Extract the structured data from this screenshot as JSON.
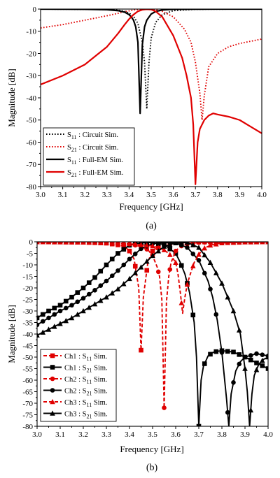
{
  "panels": [
    {
      "id": "a",
      "caption": "(a)",
      "chart_data": {
        "type": "line",
        "xlabel": "Frequency [GHz]",
        "ylabel": "Magnitude [dB]",
        "xlim": [
          3.0,
          4.0
        ],
        "ylim": [
          -80,
          0
        ],
        "xticks": [
          "3.0",
          "3.1",
          "3.2",
          "3.3",
          "3.4",
          "3.5",
          "3.6",
          "3.7",
          "3.8",
          "3.9",
          "4.0"
        ],
        "yticks": [
          "0",
          "-10",
          "-20",
          "-30",
          "-40",
          "-50",
          "-60",
          "-70",
          "-80"
        ],
        "grid": false,
        "legend_position": "bottom-left",
        "series": [
          {
            "label_main": "S",
            "label_sub": "11",
            "label_rest": " : Circuit Sim.",
            "color": "#000000",
            "style": "dotted",
            "x": [
              3.0,
              3.1,
              3.2,
              3.3,
              3.35,
              3.38,
              3.4,
              3.42,
              3.44,
              3.46,
              3.47,
              3.48,
              3.49,
              3.5,
              3.52,
              3.55,
              3.6,
              3.7,
              3.8,
              4.0
            ],
            "y": [
              -0.02,
              -0.05,
              -0.1,
              -0.25,
              -0.5,
              -1.0,
              -1.8,
              -3.2,
              -6.5,
              -15,
              -24,
              -45,
              -24,
              -13,
              -6,
              -2.5,
              -0.7,
              -0.1,
              -0.04,
              -0.01
            ]
          },
          {
            "label_main": "S",
            "label_sub": "21",
            "label_rest": " : Circuit Sim.",
            "color": "#e00000",
            "style": "dotted",
            "x": [
              3.0,
              3.1,
              3.2,
              3.3,
              3.35,
              3.38,
              3.4,
              3.42,
              3.44,
              3.46,
              3.48,
              3.5,
              3.52,
              3.55,
              3.6,
              3.65,
              3.68,
              3.7,
              3.72,
              3.73,
              3.74,
              3.76,
              3.8,
              3.85,
              3.9,
              4.0
            ],
            "y": [
              -8.5,
              -7,
              -5,
              -3,
              -1.9,
              -1.2,
              -0.8,
              -0.4,
              -0.15,
              -0.05,
              -0.05,
              -0.1,
              -0.3,
              -1.0,
              -3.5,
              -9,
              -15,
              -24,
              -38,
              -50,
              -39,
              -26,
              -20,
              -17,
              -15.5,
              -13.5
            ]
          },
          {
            "label_main": "S",
            "label_sub": "11",
            "label_rest": " : Full-EM Sim.",
            "color": "#000000",
            "style": "solid",
            "x": [
              3.0,
              3.1,
              3.2,
              3.3,
              3.35,
              3.38,
              3.4,
              3.41,
              3.42,
              3.43,
              3.44,
              3.45,
              3.46,
              3.47,
              3.48,
              3.5,
              3.52,
              3.55,
              3.6,
              3.7,
              3.8,
              4.0
            ],
            "y": [
              -0.02,
              -0.05,
              -0.1,
              -0.3,
              -0.7,
              -1.4,
              -2.5,
              -3.5,
              -5,
              -8,
              -15,
              -47,
              -16,
              -8,
              -5,
              -2.2,
              -1.1,
              -0.4,
              -0.1,
              -0.03,
              -0.02,
              -0.01
            ]
          },
          {
            "label_main": "S",
            "label_sub": "21",
            "label_rest": " : Full-EM Sim.",
            "color": "#e00000",
            "style": "solid",
            "x": [
              3.0,
              3.1,
              3.2,
              3.3,
              3.35,
              3.38,
              3.4,
              3.42,
              3.44,
              3.46,
              3.48,
              3.5,
              3.52,
              3.55,
              3.6,
              3.64,
              3.66,
              3.68,
              3.69,
              3.7,
              3.71,
              3.72,
              3.74,
              3.76,
              3.78,
              3.8,
              3.85,
              3.9,
              3.95,
              4.0
            ],
            "y": [
              -34,
              -30,
              -25,
              -17,
              -11,
              -7,
              -4.5,
              -2.5,
              -1.0,
              -0.3,
              -0.1,
              -0.2,
              -1.0,
              -3.5,
              -12,
              -22,
              -30,
              -40,
              -52,
              -79,
              -60,
              -54,
              -50,
              -48,
              -47,
              -47.5,
              -48.5,
              -50,
              -53,
              -56
            ]
          }
        ]
      }
    },
    {
      "id": "b",
      "caption": "(b)",
      "chart_data": {
        "type": "line",
        "xlabel": "Frequency [GHz]",
        "ylabel": "Magnitude [dB]",
        "xlim": [
          3.0,
          4.0
        ],
        "ylim": [
          -80,
          0
        ],
        "xticks": [
          "3.0",
          "3.1",
          "3.2",
          "3.3",
          "3.4",
          "3.5",
          "3.6",
          "3.7",
          "3.8",
          "3.9",
          "4.0"
        ],
        "yticks": [
          "0",
          "-5",
          "-10",
          "-15",
          "-20",
          "-25",
          "-30",
          "-35",
          "-40",
          "-45",
          "-50",
          "-55",
          "-60",
          "-65",
          "-70",
          "-75",
          "-80"
        ],
        "grid": false,
        "legend_position": "bottom-left",
        "series": [
          {
            "label_main": "Ch1 : S",
            "label_sub": "11",
            "label_rest": " Sim.",
            "color": "#e00000",
            "style": "dashed",
            "marker": "square",
            "x": [
              3.0,
              3.1,
              3.2,
              3.3,
              3.36,
              3.38,
              3.4,
              3.42,
              3.44,
              3.45,
              3.46,
              3.48,
              3.5,
              3.52,
              3.55,
              3.6,
              3.7,
              3.8,
              4.0
            ],
            "y": [
              -0.05,
              -0.1,
              -0.2,
              -0.6,
              -1.5,
              -2.2,
              -4,
              -7.5,
              -20,
              -47,
              -24,
              -8.5,
              -4,
              -2.2,
              -1.0,
              -0.3,
              -0.1,
              -0.05,
              -0.02
            ]
          },
          {
            "label_main": "Ch1 : S",
            "label_sub": "21",
            "label_rest": " Sim.",
            "color": "#000000",
            "style": "solid",
            "marker": "square",
            "x": [
              3.0,
              3.05,
              3.1,
              3.15,
              3.2,
              3.25,
              3.3,
              3.35,
              3.4,
              3.45,
              3.5,
              3.55,
              3.6,
              3.62,
              3.64,
              3.66,
              3.68,
              3.69,
              3.7,
              3.71,
              3.72,
              3.74,
              3.76,
              3.78,
              3.8,
              3.85,
              3.9,
              3.95,
              4.0
            ],
            "y": [
              -33,
              -30,
              -27.5,
              -24,
              -20,
              -15.5,
              -10,
              -5,
              -1.5,
              -0.4,
              -0.3,
              -1.2,
              -5,
              -9,
              -14,
              -22,
              -35,
              -50,
              -80,
              -60,
              -54,
              -49.5,
              -48,
              -47.5,
              -47.2,
              -47.8,
              -50,
              -52.5,
              -55
            ]
          },
          {
            "label_main": "Ch2 : S",
            "label_sub": "11",
            "label_rest": " Sim.",
            "color": "#e00000",
            "style": "dashed",
            "marker": "circle",
            "x": [
              3.0,
              3.1,
              3.2,
              3.3,
              3.4,
              3.45,
              3.48,
              3.5,
              3.52,
              3.53,
              3.54,
              3.55,
              3.56,
              3.57,
              3.58,
              3.6,
              3.62,
              3.65,
              3.7,
              3.8,
              4.0
            ],
            "y": [
              -0.05,
              -0.1,
              -0.2,
              -0.4,
              -1.0,
              -2,
              -3.5,
              -6,
              -11,
              -15,
              -25,
              -72,
              -26,
              -15,
              -9,
              -4,
              -2,
              -1,
              -0.3,
              -0.1,
              -0.05
            ]
          },
          {
            "label_main": "Ch2 : S",
            "label_sub": "21",
            "label_rest": " Sim.",
            "color": "#000000",
            "style": "solid",
            "marker": "circle",
            "x": [
              3.0,
              3.05,
              3.1,
              3.15,
              3.2,
              3.25,
              3.3,
              3.35,
              3.4,
              3.45,
              3.5,
              3.55,
              3.6,
              3.65,
              3.7,
              3.74,
              3.76,
              3.78,
              3.8,
              3.81,
              3.82,
              3.83,
              3.84,
              3.86,
              3.88,
              3.9,
              3.95,
              4.0
            ],
            "y": [
              -36,
              -33,
              -30,
              -27.5,
              -24.5,
              -21,
              -17,
              -12.5,
              -7.5,
              -3,
              -0.8,
              -0.3,
              -0.5,
              -2.5,
              -8,
              -17,
              -24,
              -34,
              -48,
              -58,
              -68,
              -80,
              -66,
              -56,
              -52,
              -50,
              -48.5,
              -49.5
            ]
          },
          {
            "label_main": "Ch3 : S",
            "label_sub": "11",
            "label_rest": " Sim.",
            "color": "#e00000",
            "style": "dashed",
            "marker": "triangle",
            "x": [
              3.0,
              3.1,
              3.2,
              3.3,
              3.4,
              3.5,
              3.55,
              3.58,
              3.6,
              3.61,
              3.62,
              3.63,
              3.64,
              3.65,
              3.66,
              3.68,
              3.7,
              3.72,
              3.75,
              3.8,
              3.9,
              4.0
            ],
            "y": [
              -0.05,
              -0.1,
              -0.2,
              -0.4,
              -0.8,
              -1.8,
              -3.5,
              -6,
              -9,
              -14,
              -22,
              -31,
              -24,
              -18.5,
              -15,
              -9,
              -5.5,
              -3,
              -1.5,
              -0.5,
              -0.15,
              -0.05
            ]
          },
          {
            "label_main": "Ch3 : S",
            "label_sub": "21",
            "label_rest": " Sim.",
            "color": "#000000",
            "style": "solid",
            "marker": "triangle",
            "x": [
              3.0,
              3.05,
              3.1,
              3.15,
              3.2,
              3.25,
              3.3,
              3.35,
              3.4,
              3.45,
              3.5,
              3.55,
              3.6,
              3.65,
              3.7,
              3.75,
              3.8,
              3.85,
              3.88,
              3.9,
              3.91,
              3.92,
              3.93,
              3.94,
              3.96,
              3.98,
              4.0
            ],
            "y": [
              -40.5,
              -38,
              -35.5,
              -33,
              -30,
              -27,
              -24,
              -20.5,
              -16,
              -11,
              -6,
              -2,
              -0.5,
              -0.3,
              -2.5,
              -9,
              -18,
              -30,
              -40,
              -55,
              -65,
              -80,
              -66,
              -58,
              -53,
              -51,
              -50
            ]
          }
        ]
      }
    }
  ]
}
